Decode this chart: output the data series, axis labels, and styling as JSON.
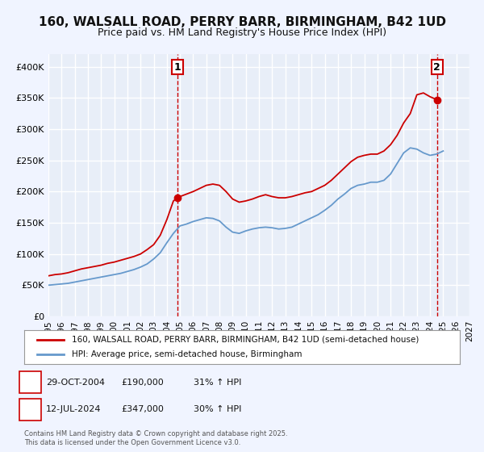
{
  "title": "160, WALSALL ROAD, PERRY BARR, BIRMINGHAM, B42 1UD",
  "subtitle": "Price paid vs. HM Land Registry's House Price Index (HPI)",
  "bg_color": "#f0f4ff",
  "plot_bg_color": "#e8eef8",
  "grid_color": "#ffffff",
  "red_color": "#cc0000",
  "blue_color": "#6699cc",
  "xlabel": "",
  "ylabel": "",
  "xlim": [
    1995,
    2027
  ],
  "ylim": [
    0,
    420000
  ],
  "yticks": [
    0,
    50000,
    100000,
    150000,
    200000,
    250000,
    300000,
    350000,
    400000
  ],
  "ytick_labels": [
    "£0",
    "£50K",
    "£100K",
    "£150K",
    "£200K",
    "£250K",
    "£300K",
    "£350K",
    "£400K"
  ],
  "xticks": [
    1995,
    1996,
    1997,
    1998,
    1999,
    2000,
    2001,
    2002,
    2003,
    2004,
    2005,
    2006,
    2007,
    2008,
    2009,
    2010,
    2011,
    2012,
    2013,
    2014,
    2015,
    2016,
    2017,
    2018,
    2019,
    2020,
    2021,
    2022,
    2023,
    2024,
    2025,
    2026,
    2027
  ],
  "marker1_x": 2004.83,
  "marker1_y": 190000,
  "marker1_label": "1",
  "marker2_x": 2024.54,
  "marker2_y": 347000,
  "marker2_label": "2",
  "vline1_x": 2004.83,
  "vline2_x": 2024.54,
  "legend_line1": "160, WALSALL ROAD, PERRY BARR, BIRMINGHAM, B42 1UD (semi-detached house)",
  "legend_line2": "HPI: Average price, semi-detached house, Birmingham",
  "annotation1_num": "1",
  "annotation1_date": "29-OCT-2004",
  "annotation1_price": "£190,000",
  "annotation1_hpi": "31% ↑ HPI",
  "annotation2_num": "2",
  "annotation2_date": "12-JUL-2024",
  "annotation2_price": "£347,000",
  "annotation2_hpi": "30% ↑ HPI",
  "footer": "Contains HM Land Registry data © Crown copyright and database right 2025.\nThis data is licensed under the Open Government Licence v3.0.",
  "red_series_x": [
    1995.0,
    1995.5,
    1996.0,
    1996.5,
    1997.0,
    1997.5,
    1998.0,
    1998.5,
    1999.0,
    1999.5,
    2000.0,
    2000.5,
    2001.0,
    2001.5,
    2002.0,
    2002.5,
    2003.0,
    2003.5,
    2004.0,
    2004.5,
    2004.83,
    2005.0,
    2005.5,
    2006.0,
    2006.5,
    2007.0,
    2007.5,
    2008.0,
    2008.5,
    2009.0,
    2009.5,
    2010.0,
    2010.5,
    2011.0,
    2011.5,
    2012.0,
    2012.5,
    2013.0,
    2013.5,
    2014.0,
    2014.5,
    2015.0,
    2015.5,
    2016.0,
    2016.5,
    2017.0,
    2017.5,
    2018.0,
    2018.5,
    2019.0,
    2019.5,
    2020.0,
    2020.5,
    2021.0,
    2021.5,
    2022.0,
    2022.5,
    2023.0,
    2023.5,
    2024.0,
    2024.54
  ],
  "red_series_y": [
    65000,
    67000,
    68000,
    70000,
    73000,
    76000,
    78000,
    80000,
    82000,
    85000,
    87000,
    90000,
    93000,
    96000,
    100000,
    107000,
    115000,
    130000,
    155000,
    185000,
    190000,
    192000,
    196000,
    200000,
    205000,
    210000,
    212000,
    210000,
    200000,
    188000,
    183000,
    185000,
    188000,
    192000,
    195000,
    192000,
    190000,
    190000,
    192000,
    195000,
    198000,
    200000,
    205000,
    210000,
    218000,
    228000,
    238000,
    248000,
    255000,
    258000,
    260000,
    260000,
    265000,
    275000,
    290000,
    310000,
    325000,
    355000,
    358000,
    352000,
    347000
  ],
  "blue_series_x": [
    1995.0,
    1995.5,
    1996.0,
    1996.5,
    1997.0,
    1997.5,
    1998.0,
    1998.5,
    1999.0,
    1999.5,
    2000.0,
    2000.5,
    2001.0,
    2001.5,
    2002.0,
    2002.5,
    2003.0,
    2003.5,
    2004.0,
    2004.5,
    2005.0,
    2005.5,
    2006.0,
    2006.5,
    2007.0,
    2007.5,
    2008.0,
    2008.5,
    2009.0,
    2009.5,
    2010.0,
    2010.5,
    2011.0,
    2011.5,
    2012.0,
    2012.5,
    2013.0,
    2013.5,
    2014.0,
    2014.5,
    2015.0,
    2015.5,
    2016.0,
    2016.5,
    2017.0,
    2017.5,
    2018.0,
    2018.5,
    2019.0,
    2019.5,
    2020.0,
    2020.5,
    2021.0,
    2021.5,
    2022.0,
    2022.5,
    2023.0,
    2023.5,
    2024.0,
    2024.5,
    2025.0
  ],
  "blue_series_y": [
    50000,
    51000,
    52000,
    53000,
    55000,
    57000,
    59000,
    61000,
    63000,
    65000,
    67000,
    69000,
    72000,
    75000,
    79000,
    84000,
    92000,
    102000,
    118000,
    133000,
    145000,
    148000,
    152000,
    155000,
    158000,
    157000,
    153000,
    143000,
    135000,
    133000,
    137000,
    140000,
    142000,
    143000,
    142000,
    140000,
    141000,
    143000,
    148000,
    153000,
    158000,
    163000,
    170000,
    178000,
    188000,
    196000,
    205000,
    210000,
    212000,
    215000,
    215000,
    218000,
    228000,
    245000,
    262000,
    270000,
    268000,
    262000,
    258000,
    260000,
    265000
  ]
}
